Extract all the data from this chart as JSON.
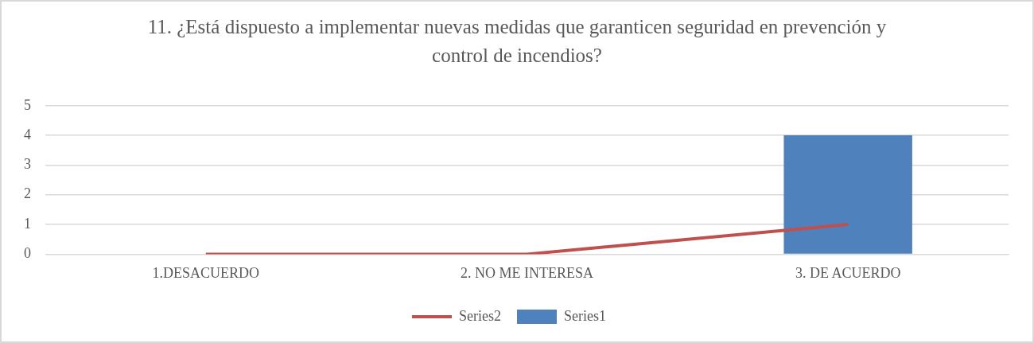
{
  "chart_data": {
    "type": "bar",
    "title": "11. ¿Está dispuesto a implementar nuevas medidas que garanticen seguridad en prevención y control de incendios?",
    "categories": [
      "1.DESACUERDO",
      "2. NO ME INTERESA",
      "3. DE ACUERDO"
    ],
    "series": [
      {
        "name": "Series1",
        "color": "#4f81bd",
        "values": [
          0,
          0,
          4
        ]
      },
      {
        "name": "Series2",
        "type": "line",
        "color": "#c0504d",
        "values": [
          0,
          0,
          1
        ]
      }
    ],
    "ylim": [
      0,
      5
    ],
    "yticks": [
      0,
      1,
      2,
      3,
      4,
      5
    ],
    "grid": "y",
    "legend": "bottom"
  }
}
